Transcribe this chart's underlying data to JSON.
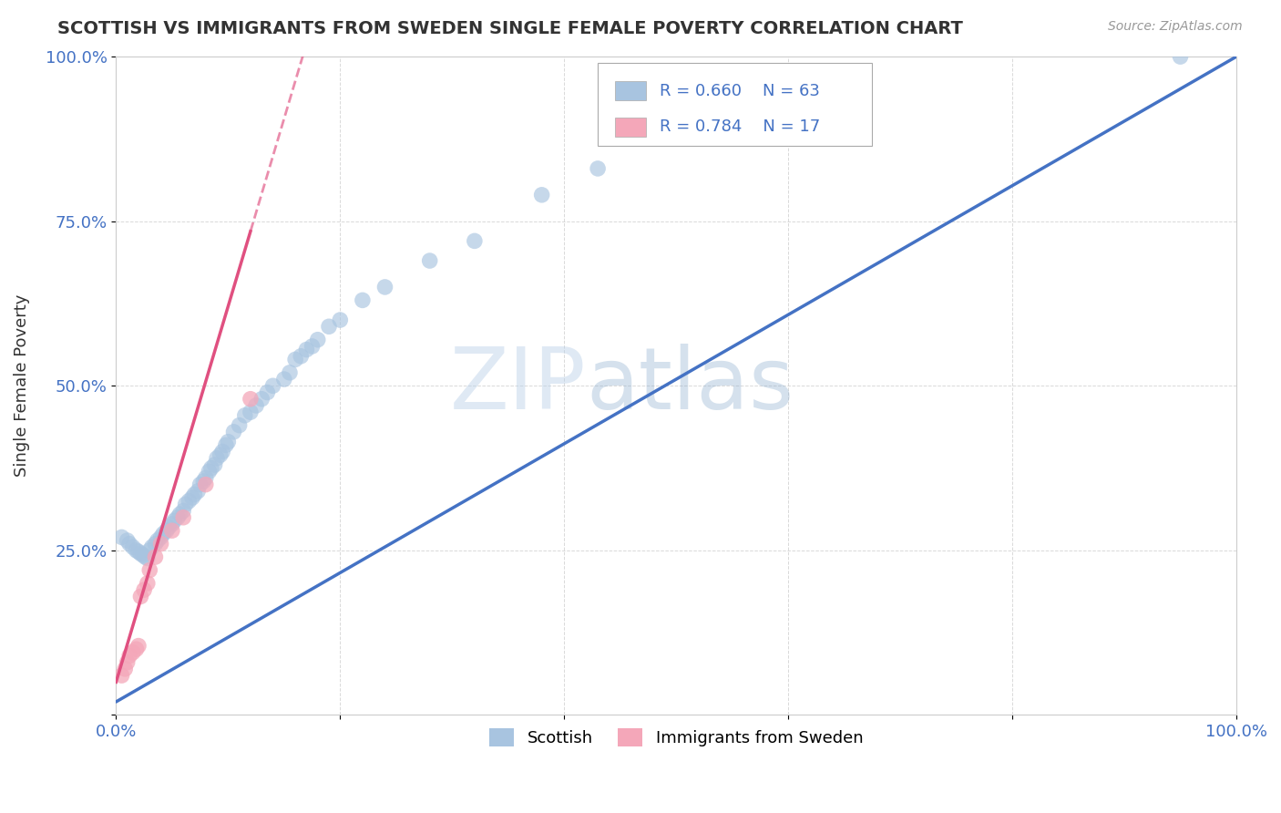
{
  "title": "SCOTTISH VS IMMIGRANTS FROM SWEDEN SINGLE FEMALE POVERTY CORRELATION CHART",
  "source": "Source: ZipAtlas.com",
  "ylabel": "Single Female Poverty",
  "xlim": [
    0.0,
    1.0
  ],
  "ylim": [
    0.0,
    1.0
  ],
  "watermark": "ZIPatlas",
  "legend_r1": "R = 0.660",
  "legend_n1": "N = 63",
  "legend_r2": "R = 0.784",
  "legend_n2": "N = 17",
  "scottish_color": "#a8c4e0",
  "sweden_color": "#f4a7b9",
  "trend_blue": "#4472c4",
  "trend_pink": "#e05080",
  "scottish_x": [
    0.005,
    0.01,
    0.012,
    0.015,
    0.018,
    0.02,
    0.022,
    0.024,
    0.026,
    0.028,
    0.03,
    0.032,
    0.035,
    0.037,
    0.04,
    0.042,
    0.045,
    0.047,
    0.05,
    0.052,
    0.055,
    0.057,
    0.06,
    0.062,
    0.065,
    0.068,
    0.07,
    0.073,
    0.075,
    0.078,
    0.08,
    0.083,
    0.085,
    0.088,
    0.09,
    0.093,
    0.095,
    0.098,
    0.1,
    0.105,
    0.11,
    0.115,
    0.12,
    0.125,
    0.13,
    0.135,
    0.14,
    0.15,
    0.155,
    0.16,
    0.165,
    0.17,
    0.175,
    0.18,
    0.19,
    0.2,
    0.22,
    0.24,
    0.28,
    0.32,
    0.38,
    0.43,
    0.95
  ],
  "scottish_y": [
    0.27,
    0.265,
    0.26,
    0.255,
    0.25,
    0.248,
    0.245,
    0.243,
    0.24,
    0.238,
    0.25,
    0.255,
    0.26,
    0.265,
    0.27,
    0.275,
    0.28,
    0.285,
    0.29,
    0.295,
    0.3,
    0.305,
    0.31,
    0.32,
    0.325,
    0.33,
    0.335,
    0.34,
    0.35,
    0.355,
    0.36,
    0.37,
    0.375,
    0.38,
    0.39,
    0.395,
    0.4,
    0.41,
    0.415,
    0.43,
    0.44,
    0.455,
    0.46,
    0.47,
    0.48,
    0.49,
    0.5,
    0.51,
    0.52,
    0.54,
    0.545,
    0.555,
    0.56,
    0.57,
    0.59,
    0.6,
    0.63,
    0.65,
    0.69,
    0.72,
    0.79,
    0.83,
    1.0
  ],
  "sweden_x": [
    0.005,
    0.008,
    0.01,
    0.012,
    0.015,
    0.018,
    0.02,
    0.022,
    0.025,
    0.028,
    0.03,
    0.035,
    0.04,
    0.05,
    0.06,
    0.08,
    0.12
  ],
  "sweden_y": [
    0.06,
    0.07,
    0.08,
    0.09,
    0.095,
    0.1,
    0.105,
    0.18,
    0.19,
    0.2,
    0.22,
    0.24,
    0.26,
    0.28,
    0.3,
    0.35,
    0.48
  ],
  "pink_trend_x0": 0.0,
  "pink_trend_y0": 0.05,
  "pink_trend_x1": 0.17,
  "pink_trend_y1": 1.02,
  "blue_trend_x0": 0.0,
  "blue_trend_y0": 0.02,
  "blue_trend_x1": 1.0,
  "blue_trend_y1": 1.0,
  "background_color": "#ffffff",
  "grid_color": "#d0d0d0"
}
